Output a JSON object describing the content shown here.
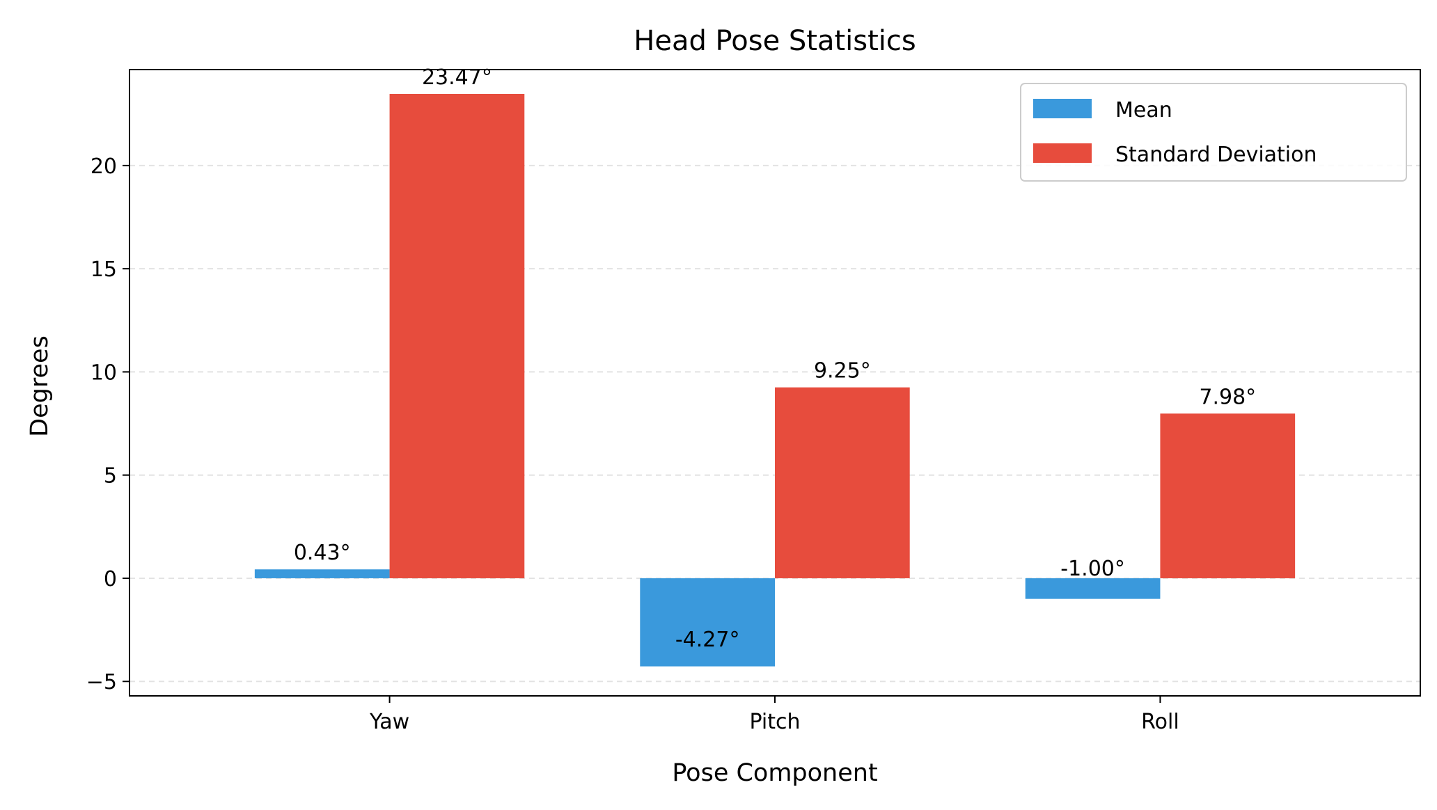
{
  "chart_data": {
    "type": "bar",
    "title": "Head Pose Statistics",
    "xlabel": "Pose Component",
    "ylabel": "Degrees",
    "categories": [
      "Yaw",
      "Pitch",
      "Roll"
    ],
    "series": [
      {
        "name": "Mean",
        "color": "#3a99dc",
        "values": [
          0.43,
          -4.27,
          -1.0
        ],
        "labels": [
          "0.43°",
          "-4.27°",
          "-1.00°"
        ]
      },
      {
        "name": "Standard Deviation",
        "color": "#e74c3d",
        "values": [
          23.47,
          9.25,
          7.98
        ],
        "labels": [
          "23.47°",
          "9.25°",
          "7.98°"
        ]
      }
    ],
    "ylim": [
      -5.7,
      24.65
    ],
    "yticks": [
      -5,
      0,
      5,
      10,
      15,
      20
    ],
    "ytick_labels": [
      "−5",
      "0",
      "5",
      "10",
      "15",
      "20"
    ],
    "grid": "horizontal dashed",
    "legend": "top-right"
  }
}
